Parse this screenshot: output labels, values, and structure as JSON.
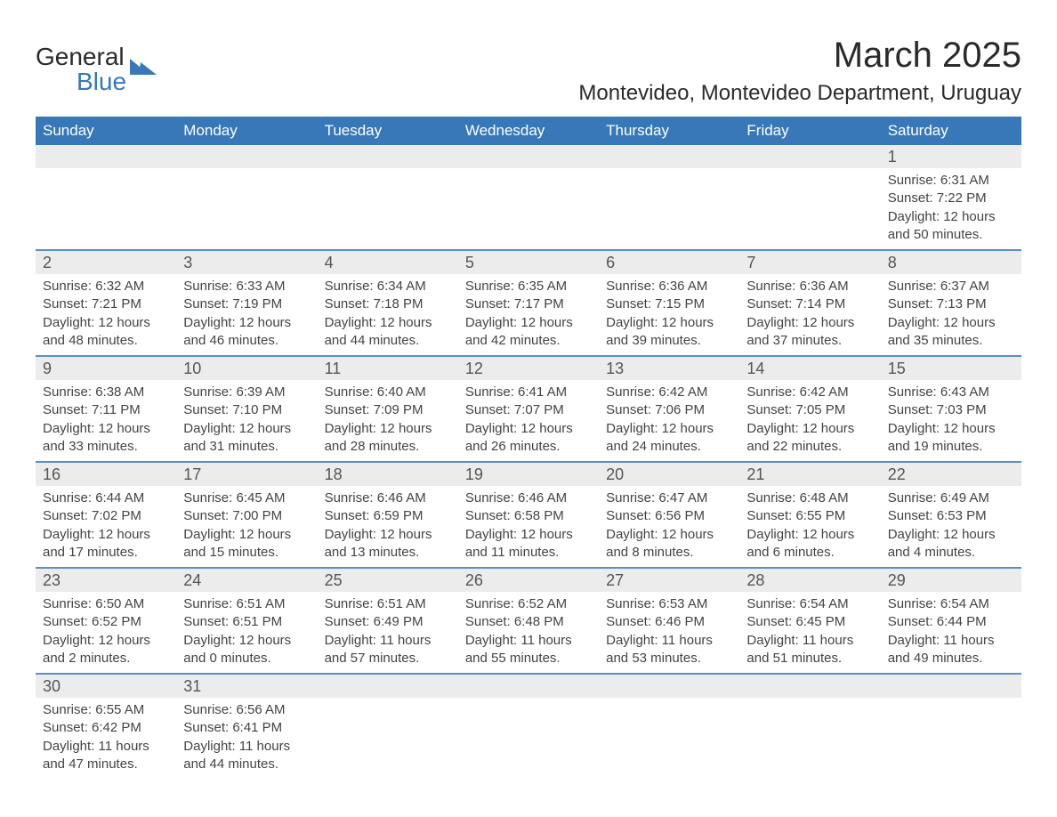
{
  "logo": {
    "name": "General",
    "subname": "Blue"
  },
  "title": "March 2025",
  "subtitle": "Montevideo, Montevideo Department, Uruguay",
  "colors": {
    "header_bg": "#3878b8",
    "header_fg": "#ffffff",
    "daynum_bg": "#ececec",
    "row_divider": "#5a8fc7",
    "logo_accent": "#3878b8"
  },
  "weekdays": [
    "Sunday",
    "Monday",
    "Tuesday",
    "Wednesday",
    "Thursday",
    "Friday",
    "Saturday"
  ],
  "weeks": [
    [
      null,
      null,
      null,
      null,
      null,
      null,
      {
        "d": "1",
        "sr": "6:31 AM",
        "ss": "7:22 PM",
        "dl": "12 hours and 50 minutes."
      }
    ],
    [
      {
        "d": "2",
        "sr": "6:32 AM",
        "ss": "7:21 PM",
        "dl": "12 hours and 48 minutes."
      },
      {
        "d": "3",
        "sr": "6:33 AM",
        "ss": "7:19 PM",
        "dl": "12 hours and 46 minutes."
      },
      {
        "d": "4",
        "sr": "6:34 AM",
        "ss": "7:18 PM",
        "dl": "12 hours and 44 minutes."
      },
      {
        "d": "5",
        "sr": "6:35 AM",
        "ss": "7:17 PM",
        "dl": "12 hours and 42 minutes."
      },
      {
        "d": "6",
        "sr": "6:36 AM",
        "ss": "7:15 PM",
        "dl": "12 hours and 39 minutes."
      },
      {
        "d": "7",
        "sr": "6:36 AM",
        "ss": "7:14 PM",
        "dl": "12 hours and 37 minutes."
      },
      {
        "d": "8",
        "sr": "6:37 AM",
        "ss": "7:13 PM",
        "dl": "12 hours and 35 minutes."
      }
    ],
    [
      {
        "d": "9",
        "sr": "6:38 AM",
        "ss": "7:11 PM",
        "dl": "12 hours and 33 minutes."
      },
      {
        "d": "10",
        "sr": "6:39 AM",
        "ss": "7:10 PM",
        "dl": "12 hours and 31 minutes."
      },
      {
        "d": "11",
        "sr": "6:40 AM",
        "ss": "7:09 PM",
        "dl": "12 hours and 28 minutes."
      },
      {
        "d": "12",
        "sr": "6:41 AM",
        "ss": "7:07 PM",
        "dl": "12 hours and 26 minutes."
      },
      {
        "d": "13",
        "sr": "6:42 AM",
        "ss": "7:06 PM",
        "dl": "12 hours and 24 minutes."
      },
      {
        "d": "14",
        "sr": "6:42 AM",
        "ss": "7:05 PM",
        "dl": "12 hours and 22 minutes."
      },
      {
        "d": "15",
        "sr": "6:43 AM",
        "ss": "7:03 PM",
        "dl": "12 hours and 19 minutes."
      }
    ],
    [
      {
        "d": "16",
        "sr": "6:44 AM",
        "ss": "7:02 PM",
        "dl": "12 hours and 17 minutes."
      },
      {
        "d": "17",
        "sr": "6:45 AM",
        "ss": "7:00 PM",
        "dl": "12 hours and 15 minutes."
      },
      {
        "d": "18",
        "sr": "6:46 AM",
        "ss": "6:59 PM",
        "dl": "12 hours and 13 minutes."
      },
      {
        "d": "19",
        "sr": "6:46 AM",
        "ss": "6:58 PM",
        "dl": "12 hours and 11 minutes."
      },
      {
        "d": "20",
        "sr": "6:47 AM",
        "ss": "6:56 PM",
        "dl": "12 hours and 8 minutes."
      },
      {
        "d": "21",
        "sr": "6:48 AM",
        "ss": "6:55 PM",
        "dl": "12 hours and 6 minutes."
      },
      {
        "d": "22",
        "sr": "6:49 AM",
        "ss": "6:53 PM",
        "dl": "12 hours and 4 minutes."
      }
    ],
    [
      {
        "d": "23",
        "sr": "6:50 AM",
        "ss": "6:52 PM",
        "dl": "12 hours and 2 minutes."
      },
      {
        "d": "24",
        "sr": "6:51 AM",
        "ss": "6:51 PM",
        "dl": "12 hours and 0 minutes."
      },
      {
        "d": "25",
        "sr": "6:51 AM",
        "ss": "6:49 PM",
        "dl": "11 hours and 57 minutes."
      },
      {
        "d": "26",
        "sr": "6:52 AM",
        "ss": "6:48 PM",
        "dl": "11 hours and 55 minutes."
      },
      {
        "d": "27",
        "sr": "6:53 AM",
        "ss": "6:46 PM",
        "dl": "11 hours and 53 minutes."
      },
      {
        "d": "28",
        "sr": "6:54 AM",
        "ss": "6:45 PM",
        "dl": "11 hours and 51 minutes."
      },
      {
        "d": "29",
        "sr": "6:54 AM",
        "ss": "6:44 PM",
        "dl": "11 hours and 49 minutes."
      }
    ],
    [
      {
        "d": "30",
        "sr": "6:55 AM",
        "ss": "6:42 PM",
        "dl": "11 hours and 47 minutes."
      },
      {
        "d": "31",
        "sr": "6:56 AM",
        "ss": "6:41 PM",
        "dl": "11 hours and 44 minutes."
      },
      null,
      null,
      null,
      null,
      null
    ]
  ],
  "labels": {
    "sunrise": "Sunrise: ",
    "sunset": "Sunset: ",
    "daylight": "Daylight: "
  }
}
